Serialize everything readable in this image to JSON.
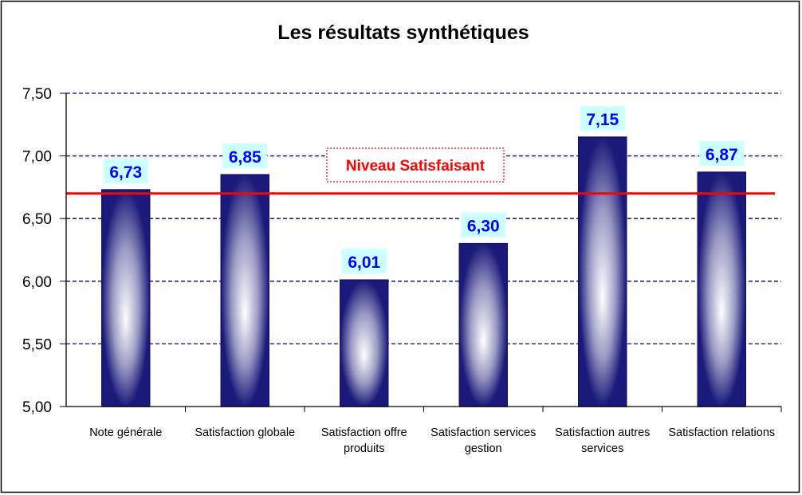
{
  "chart_data": {
    "type": "bar",
    "title": "Les résultats synthétiques",
    "categories": [
      [
        "Note générale"
      ],
      [
        "Satisfaction globale"
      ],
      [
        "Satisfaction offre",
        "produits"
      ],
      [
        "Satisfaction services",
        "gestion"
      ],
      [
        "Satisfaction autres",
        "services"
      ],
      [
        "Satisfaction relations"
      ]
    ],
    "values": [
      6.73,
      6.85,
      6.01,
      6.3,
      7.15,
      6.87
    ],
    "value_labels": [
      "6,73",
      "6,85",
      "6,01",
      "6,30",
      "7,15",
      "6,87"
    ],
    "ylim": [
      5.0,
      7.5
    ],
    "yticks": [
      5.0,
      5.5,
      6.0,
      6.5,
      7.0,
      7.5
    ],
    "ytick_labels": [
      "5,00",
      "5,50",
      "6,00",
      "6,50",
      "7,00",
      "7,50"
    ],
    "grid": true,
    "xlabel": "",
    "ylabel": "",
    "reference_line": {
      "value": 6.7,
      "label": "Niveau Satisfaisant",
      "color": "#ff0000"
    },
    "colors": {
      "bar_dark": "#1a1a7a",
      "bar_light": "#ffffff",
      "label_text": "#0000ff",
      "label_bg": "#ccffff",
      "grid": "#000080"
    }
  }
}
